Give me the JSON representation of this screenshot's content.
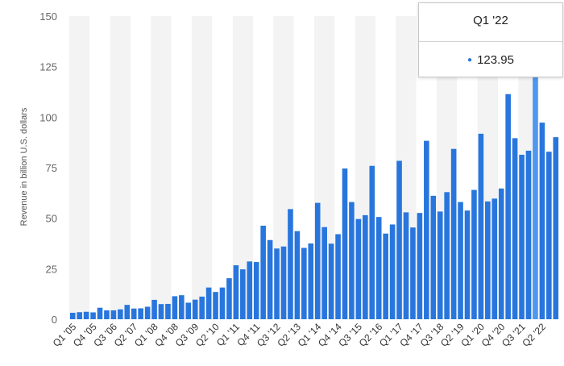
{
  "chart_data": {
    "type": "bar",
    "title": "",
    "xlabel": "",
    "ylabel": "Revenue in billion U.S. dollars",
    "ylim": [
      0,
      150
    ],
    "yticks": [
      0,
      25,
      50,
      75,
      100,
      125,
      150
    ],
    "grid": "alternating column bands",
    "legend": "none",
    "bar_color": "#2876dd",
    "highlight_color": "#4e97ef",
    "highlight_category": "Q1 '22",
    "categories": [
      "Q1 '05",
      "Q2 '05",
      "Q3 '05",
      "Q4 '05",
      "Q1 '06",
      "Q2 '06",
      "Q3 '06",
      "Q4 '06",
      "Q1 '07",
      "Q2 '07",
      "Q3 '07",
      "Q4 '07",
      "Q1 '08",
      "Q2 '08",
      "Q3 '08",
      "Q4 '08",
      "Q1 '09",
      "Q2 '09",
      "Q3 '09",
      "Q4 '09",
      "Q1 '10",
      "Q2 '10",
      "Q3 '10",
      "Q4 '10",
      "Q1 '11",
      "Q2 '11",
      "Q3 '11",
      "Q4 '11",
      "Q1 '12",
      "Q2 '12",
      "Q3 '12",
      "Q4 '12",
      "Q1 '13",
      "Q2 '13",
      "Q3 '13",
      "Q4 '13",
      "Q1 '14",
      "Q2 '14",
      "Q3 '14",
      "Q4 '14",
      "Q1 '15",
      "Q2 '15",
      "Q3 '15",
      "Q4 '15",
      "Q1 '16",
      "Q2 '16",
      "Q3 '16",
      "Q4 '16",
      "Q1 '17",
      "Q2 '17",
      "Q3 '17",
      "Q4 '17",
      "Q1 '18",
      "Q2 '18",
      "Q3 '18",
      "Q4 '18",
      "Q1 '19",
      "Q2 '19",
      "Q3 '19",
      "Q4 '19",
      "Q1 '20",
      "Q2 '20",
      "Q3 '20",
      "Q4 '20",
      "Q1 '21",
      "Q2 '21",
      "Q3 '21",
      "Q4 '21",
      "Q1 '22",
      "Q2 '22",
      "Q3 '22",
      "Q4 '22"
    ],
    "values": [
      3.2,
      3.5,
      3.7,
      3.4,
      5.7,
      4.4,
      4.4,
      4.9,
      7.1,
      5.3,
      5.4,
      6.2,
      9.6,
      7.5,
      7.6,
      11.4,
      11.9,
      8.2,
      9.7,
      11.2,
      15.7,
      13.5,
      15.7,
      20.3,
      26.7,
      24.7,
      28.6,
      28.3,
      46.3,
      39.2,
      35.0,
      36.0,
      54.5,
      43.6,
      35.3,
      37.5,
      57.6,
      45.6,
      37.4,
      42.1,
      74.6,
      58.0,
      49.6,
      51.5,
      75.9,
      50.6,
      42.4,
      46.9,
      78.4,
      52.9,
      45.4,
      52.6,
      88.3,
      61.1,
      53.3,
      62.9,
      84.3,
      58.0,
      53.8,
      64.0,
      91.8,
      58.3,
      59.7,
      64.7,
      111.4,
      89.6,
      81.4,
      83.4,
      123.95,
      97.3,
      82.9,
      90.1
    ],
    "x_tick_labels": [
      "Q1 '05",
      "Q4 '05",
      "Q3 '06",
      "Q2 '07",
      "Q1 '08",
      "Q4 '08",
      "Q3 '09",
      "Q2 '10",
      "Q1 '11",
      "Q4 '11",
      "Q3 '12",
      "Q2 '13",
      "Q1 '14",
      "Q4 '14",
      "Q3 '15",
      "Q2 '16",
      "Q1 '17",
      "Q4 '17",
      "Q3 '18",
      "Q2 '19",
      "Q1 '20",
      "Q4 '20",
      "Q3 '21",
      "Q2 '22"
    ]
  },
  "tooltip": {
    "title": "Q1 '22",
    "value": "123.95",
    "marker_icon": "bullet-dot-icon"
  }
}
